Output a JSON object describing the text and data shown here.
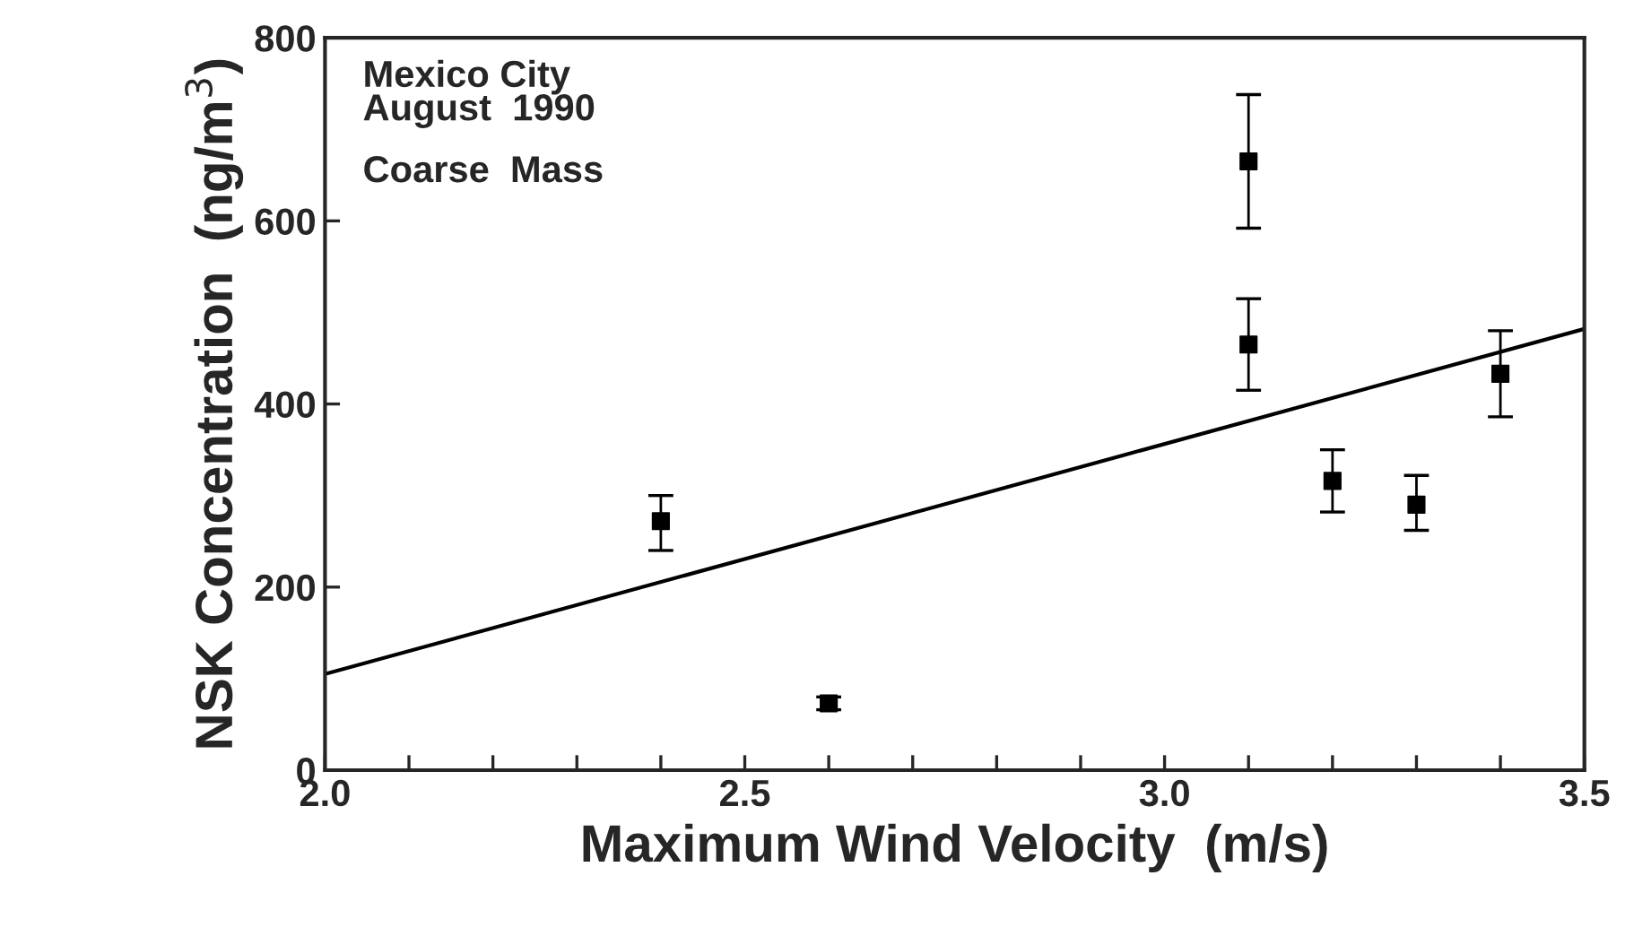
{
  "chart_data": {
    "type": "scatter",
    "xlabel": "Maximum Wind Velocity  (m/s)",
    "ylabel": "NSK Concentration  (ng/m$^{3}$)",
    "annotations": [
      "Mexico City\nAugust  1990",
      "Coarse  Mass"
    ],
    "series": [
      {
        "color": "#000000",
        "marker": "square",
        "x": [
          2.4,
          2.6,
          3.1,
          3.1,
          3.2,
          3.3,
          3.4
        ],
        "values": [
          272,
          73,
          665,
          465,
          316,
          290,
          433
        ],
        "errors": [
          [
            240,
            300
          ],
          [
            66,
            80
          ],
          [
            592,
            738
          ],
          [
            415,
            515
          ],
          [
            282,
            350
          ],
          [
            262,
            322
          ],
          [
            386,
            480
          ]
        ]
      },
      {
        "type": "line",
        "color": "#000000",
        "line_style": "solid",
        "x": [
          2.0,
          3.5
        ],
        "values": [
          105,
          482
        ]
      }
    ],
    "xlim": [
      2.0,
      3.5
    ],
    "ylim": [
      0,
      800
    ],
    "xticks": [
      {
        "value": 2.0,
        "label": "2.0"
      },
      {
        "value": 2.1,
        "label": null
      },
      {
        "value": 2.2,
        "label": null
      },
      {
        "value": 2.3,
        "label": null
      },
      {
        "value": 2.4,
        "label": null
      },
      {
        "value": 2.5,
        "label": "2.5"
      },
      {
        "value": 2.6,
        "label": null
      },
      {
        "value": 2.7,
        "label": null
      },
      {
        "value": 2.8,
        "label": null
      },
      {
        "value": 2.9,
        "label": null
      },
      {
        "value": 3.0,
        "label": "3.0"
      },
      {
        "value": 3.1,
        "label": null
      },
      {
        "value": 3.2,
        "label": null
      },
      {
        "value": 3.3,
        "label": null
      },
      {
        "value": 3.4,
        "label": null
      },
      {
        "value": 3.5,
        "label": "3.5"
      }
    ],
    "yticks": [
      0,
      200,
      400,
      600,
      800
    ],
    "grid": false,
    "legend": false
  }
}
